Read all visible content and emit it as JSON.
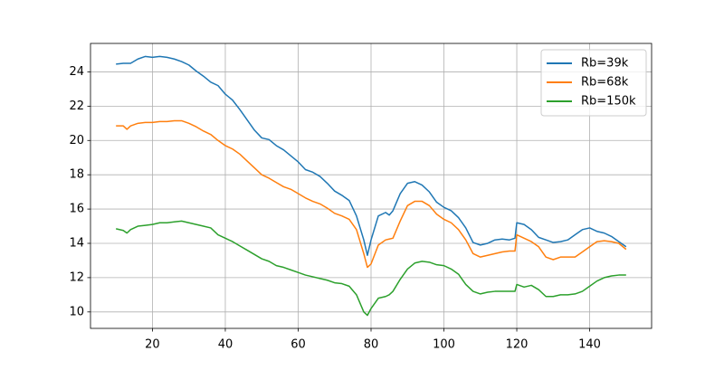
{
  "chart_data": {
    "type": "line",
    "x": [
      10,
      12,
      13,
      14,
      16,
      18,
      20,
      22,
      24,
      26,
      28,
      30,
      32,
      34,
      36,
      38,
      40,
      42,
      44,
      46,
      48,
      50,
      52,
      54,
      56,
      58,
      60,
      62,
      64,
      66,
      68,
      70,
      72,
      74,
      76,
      78,
      79,
      80,
      82,
      84,
      85,
      86,
      88,
      90,
      92,
      94,
      96,
      98,
      100,
      102,
      104,
      106,
      108,
      110,
      112,
      114,
      116,
      118,
      119.5,
      120,
      122,
      124,
      126,
      128,
      130,
      132,
      134,
      136,
      138,
      140,
      142,
      144,
      146,
      148,
      150
    ],
    "series": [
      {
        "name": "Rb=39k",
        "color": "#1f77b4",
        "values": [
          24.45,
          24.5,
          24.5,
          24.5,
          24.75,
          24.9,
          24.85,
          24.9,
          24.85,
          24.75,
          24.6,
          24.4,
          24.05,
          23.75,
          23.4,
          23.2,
          22.7,
          22.35,
          21.8,
          21.2,
          20.6,
          20.15,
          20.05,
          19.7,
          19.45,
          19.1,
          18.75,
          18.3,
          18.15,
          17.9,
          17.5,
          17.05,
          16.8,
          16.5,
          15.6,
          14.2,
          13.3,
          14.2,
          15.6,
          15.8,
          15.65,
          15.9,
          16.9,
          17.5,
          17.6,
          17.4,
          17.0,
          16.4,
          16.1,
          15.9,
          15.5,
          14.9,
          14.05,
          13.9,
          14.0,
          14.2,
          14.25,
          14.2,
          14.3,
          15.2,
          15.1,
          14.8,
          14.35,
          14.2,
          14.05,
          14.1,
          14.2,
          14.5,
          14.8,
          14.9,
          14.7,
          14.6,
          14.4,
          14.1,
          13.8
        ]
      },
      {
        "name": "Rb=68k",
        "color": "#ff7f0e",
        "values": [
          20.85,
          20.85,
          20.65,
          20.85,
          21.0,
          21.05,
          21.05,
          21.1,
          21.1,
          21.15,
          21.15,
          21.0,
          20.8,
          20.55,
          20.35,
          20.0,
          19.7,
          19.5,
          19.2,
          18.8,
          18.4,
          18.0,
          17.8,
          17.55,
          17.3,
          17.15,
          16.9,
          16.65,
          16.45,
          16.3,
          16.05,
          15.75,
          15.6,
          15.4,
          14.8,
          13.4,
          12.6,
          12.8,
          13.9,
          14.2,
          14.25,
          14.3,
          15.3,
          16.2,
          16.45,
          16.45,
          16.2,
          15.7,
          15.4,
          15.2,
          14.8,
          14.2,
          13.4,
          13.2,
          13.3,
          13.4,
          13.5,
          13.55,
          13.55,
          14.5,
          14.3,
          14.1,
          13.8,
          13.2,
          13.05,
          13.2,
          13.2,
          13.2,
          13.5,
          13.8,
          14.1,
          14.15,
          14.1,
          14.0,
          13.65
        ]
      },
      {
        "name": "Rb=150k",
        "color": "#2ca02c",
        "values": [
          14.85,
          14.75,
          14.6,
          14.8,
          15.0,
          15.05,
          15.1,
          15.2,
          15.2,
          15.25,
          15.3,
          15.2,
          15.1,
          15.0,
          14.9,
          14.5,
          14.3,
          14.1,
          13.85,
          13.6,
          13.35,
          13.1,
          12.95,
          12.7,
          12.6,
          12.45,
          12.3,
          12.15,
          12.05,
          11.95,
          11.85,
          11.7,
          11.65,
          11.5,
          11.0,
          10.0,
          9.8,
          10.2,
          10.8,
          10.9,
          11.0,
          11.2,
          11.9,
          12.5,
          12.85,
          12.95,
          12.9,
          12.75,
          12.7,
          12.5,
          12.2,
          11.6,
          11.2,
          11.05,
          11.15,
          11.2,
          11.2,
          11.2,
          11.2,
          11.6,
          11.45,
          11.55,
          11.3,
          10.9,
          10.9,
          11.0,
          11.0,
          11.05,
          11.2,
          11.5,
          11.8,
          12.0,
          12.1,
          12.15,
          12.15
        ]
      }
    ],
    "xlim": [
      3,
      157
    ],
    "ylim": [
      9.04,
      25.66
    ],
    "xticks": [
      20,
      40,
      60,
      80,
      100,
      120,
      140
    ],
    "yticks": [
      10,
      12,
      14,
      16,
      18,
      20,
      22,
      24
    ],
    "grid": true,
    "legend": "upper-right"
  }
}
